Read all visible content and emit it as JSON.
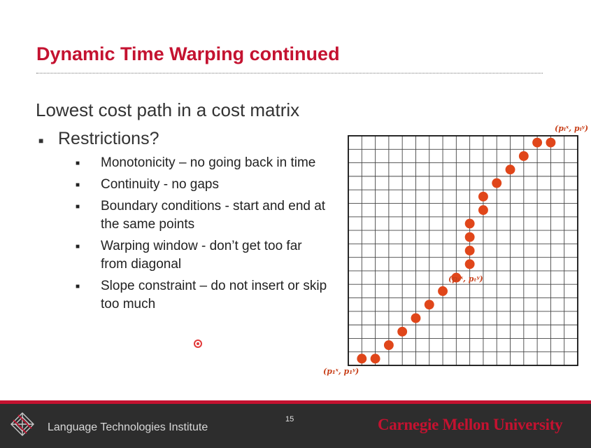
{
  "slide": {
    "title": "Dynamic Time Warping continued",
    "lead": "Lowest cost path in a cost matrix",
    "restrictions_label": "Restrictions?",
    "sub_items": [
      "Monotonicity – no going back in time",
      "Continuity  - no gaps",
      "Boundary conditions - start and end at the same points",
      "Warping window - don’t get too far from diagonal",
      "Slope constraint – do not insert or skip too much"
    ]
  },
  "diagram": {
    "rows": 17,
    "cols": 17,
    "path_cells": [
      [
        1,
        0
      ],
      [
        2,
        0
      ],
      [
        3,
        1
      ],
      [
        4,
        2
      ],
      [
        5,
        3
      ],
      [
        6,
        4
      ],
      [
        7,
        5
      ],
      [
        8,
        6
      ],
      [
        9,
        7
      ],
      [
        9,
        8
      ],
      [
        9,
        9
      ],
      [
        9,
        10
      ],
      [
        10,
        11
      ],
      [
        10,
        12
      ],
      [
        11,
        13
      ],
      [
        12,
        14
      ],
      [
        13,
        15
      ],
      [
        14,
        16
      ],
      [
        15,
        16
      ]
    ],
    "dot_color": "#e0461a",
    "labels": {
      "start": "(p₁ˣ, p₁ʸ)",
      "mid": "(pₜˣ, pₜʸ)",
      "end": "(pₗˣ, pₗʸ)"
    }
  },
  "footer": {
    "institute": "Language Technologies Institute",
    "page_number": "15",
    "university": "Carnegie Mellon University"
  },
  "colors": {
    "title": "#c41230",
    "footer_bg": "#2d2d2d",
    "accent": "#c41230"
  }
}
